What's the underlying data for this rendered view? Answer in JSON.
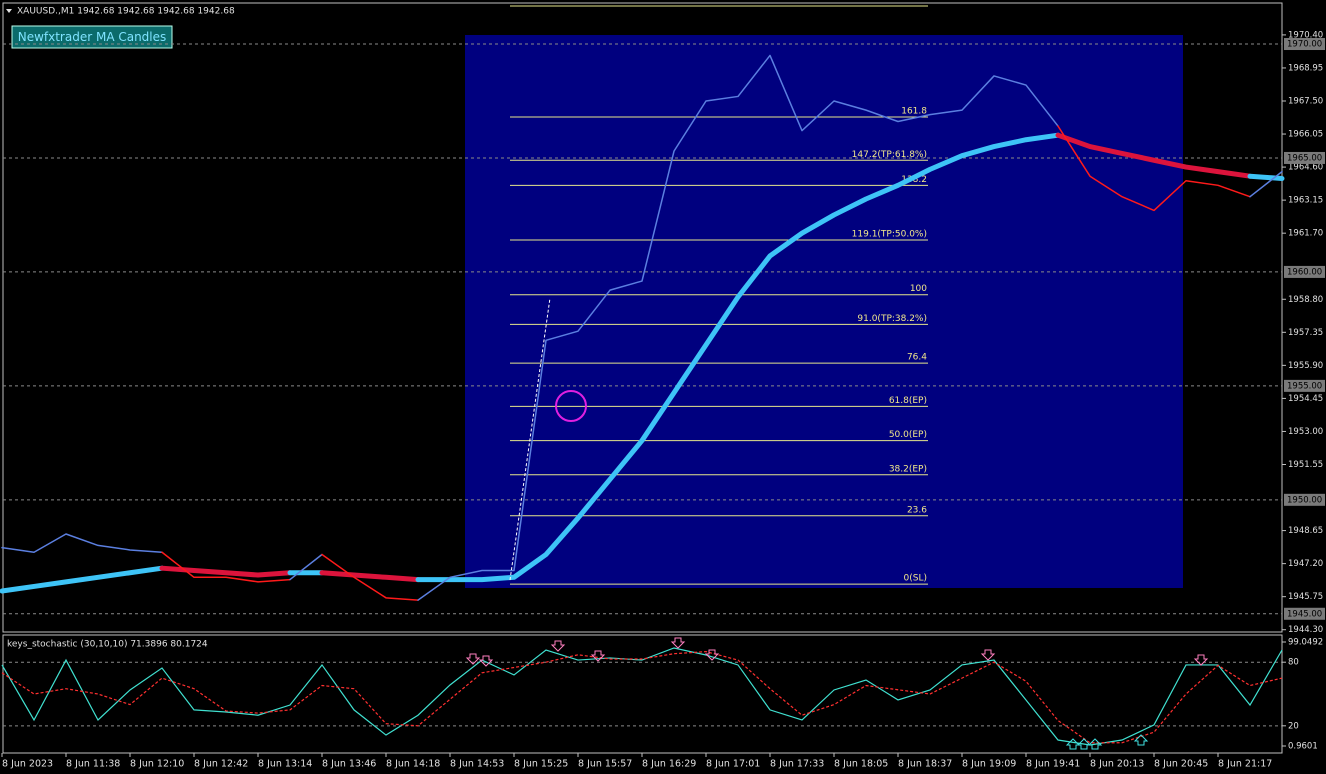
{
  "chart_data": [
    {
      "type": "line",
      "title": "XAUUSD.,M1  1942.68 1942.68 1942.68 1942.68",
      "indicator": "Newfxtrader MA Candles",
      "ylim": [
        1944.2,
        1971.8
      ],
      "yticks": [
        {
          "value": 1970.4,
          "label": "1970.40"
        },
        {
          "value": 1968.95,
          "label": "1968.95"
        },
        {
          "value": 1967.5,
          "label": "1967.50"
        },
        {
          "value": 1966.05,
          "label": "1966.05"
        },
        {
          "value": 1964.6,
          "label": "1964.60"
        },
        {
          "value": 1963.15,
          "label": "1963.15"
        },
        {
          "value": 1961.7,
          "label": "1961.70"
        },
        {
          "value": 1958.8,
          "label": "1958.80"
        },
        {
          "value": 1957.35,
          "label": "1957.35"
        },
        {
          "value": 1955.9,
          "label": "1955.90"
        },
        {
          "value": 1954.45,
          "label": "1954.45"
        },
        {
          "value": 1953,
          "label": "1953.00"
        },
        {
          "value": 1951.55,
          "label": "1951.55"
        },
        {
          "value": 1948.65,
          "label": "1948.65"
        },
        {
          "value": 1947.2,
          "label": "1947.20"
        },
        {
          "value": 1945.75,
          "label": "1945.75"
        },
        {
          "value": 1944.3,
          "label": "1944.30"
        }
      ],
      "price_levels": [
        {
          "value": 1970,
          "label": "1970.00"
        },
        {
          "value": 1965,
          "label": "1965.00"
        },
        {
          "value": 1960,
          "label": "1960.00"
        },
        {
          "value": 1955,
          "label": "1955.00"
        },
        {
          "value": 1950,
          "label": "1950.00"
        },
        {
          "value": 1945,
          "label": "1945.00"
        }
      ],
      "fib_levels": [
        {
          "label": "161.8",
          "value": 1966.8
        },
        {
          "label": "147.2(TP:61.8%)",
          "value": 1964.9
        },
        {
          "label": "138.2",
          "value": 1963.8
        },
        {
          "label": "119.1(TP:50.0%)",
          "value": 1961.4
        },
        {
          "label": "100",
          "value": 1959.0
        },
        {
          "label": "91.0(TP:38.2%)",
          "value": 1957.7
        },
        {
          "label": "76.4",
          "value": 1956.0
        },
        {
          "label": "61.8(EP)",
          "value": 1954.1
        },
        {
          "label": "50.0(EP)",
          "value": 1952.6
        },
        {
          "label": "38.2(EP)",
          "value": 1951.1
        },
        {
          "label": "23.6",
          "value": 1949.3
        },
        {
          "label": "0(SL)",
          "value": 1946.3
        }
      ],
      "series": [
        {
          "color": "#5b7fe0",
          "down_color": "#ff1a1a",
          "width": 1.5,
          "values": [
            1947.9,
            1947.7,
            1948.5,
            1948.0,
            1947.8,
            1947.7,
            1946.6,
            1946.6,
            1946.4,
            1946.5,
            1947.6,
            1946.6,
            1945.7,
            1945.6,
            1946.6,
            1946.9,
            1946.9,
            1957.0,
            1957.4,
            1959.2,
            1959.6,
            1965.3,
            1967.5,
            1967.7,
            1969.5,
            1966.2,
            1967.5,
            1967.1,
            1966.6,
            1966.9,
            1967.1,
            1968.6,
            1968.2,
            1966.4,
            1964.2,
            1963.3,
            1962.7,
            1964.0,
            1963.8,
            1963.3,
            1964.4
          ]
        },
        {
          "color": "#3ec4f7",
          "down_color": "#dc143c",
          "width": 5,
          "values": [
            1946.0,
            1946.2,
            1946.4,
            1946.6,
            1946.8,
            1947.0,
            1946.9,
            1946.8,
            1946.7,
            1946.8,
            1946.8,
            1946.7,
            1946.6,
            1946.5,
            1946.5,
            1946.5,
            1946.6,
            1947.6,
            1949.2,
            1950.9,
            1952.6,
            1954.7,
            1956.8,
            1958.9,
            1960.7,
            1961.7,
            1962.5,
            1963.2,
            1963.8,
            1964.5,
            1965.1,
            1965.5,
            1965.8,
            1966.0,
            1965.5,
            1965.2,
            1964.9,
            1964.6,
            1964.4,
            1964.2,
            1964.1
          ]
        }
      ]
    },
    {
      "type": "line",
      "title": "keys_stochastic (30,10,10) 71.3896 80.1724",
      "ylim": [
        0.9601,
        99.0492
      ],
      "yticks": [
        0.9601,
        20,
        80,
        99.0492
      ],
      "categories": [
        "8 Jun 2023",
        null,
        "8 Jun 11:38",
        null,
        "8 Jun 12:10",
        null,
        "8 Jun 12:42",
        null,
        "8 Jun 13:14",
        null,
        "8 Jun 13:46",
        null,
        "8 Jun 14:18",
        null,
        "8 Jun 14:53",
        null,
        "8 Jun 15:25",
        null,
        "8 Jun 15:57",
        null,
        "8 Jun 16:29",
        null,
        "8 Jun 17:01",
        null,
        "8 Jun 17:33",
        null,
        "8 Jun 18:05",
        null,
        "8 Jun 18:37",
        null,
        "8 Jun 19:09",
        null,
        "8 Jun 19:41",
        null,
        "8 Jun 20:13",
        null,
        "8 Jun 20:45",
        null,
        "8 Jun 21:17",
        null,
        null
      ],
      "series": [
        {
          "color": "#40e0d0",
          "dash": false,
          "values": [
            77.4,
            25.5,
            82,
            25.5,
            53.8,
            74.5,
            35,
            33,
            30,
            39.6,
            77.4,
            35,
            11.3,
            30,
            58.5,
            82,
            68,
            91.5,
            82,
            84,
            82,
            93.4,
            86.8,
            77.4,
            35,
            25.5,
            53.8,
            63.2,
            44.4,
            53.8,
            77.4,
            82,
            44.4,
            6.6,
            1.9,
            6.6,
            20.8,
            77.4,
            77.4,
            39.6,
            91.5
          ]
        },
        {
          "color": "#ff3030",
          "dash": true,
          "values": [
            70,
            50,
            55,
            50,
            40,
            65,
            55,
            34,
            32,
            35,
            58,
            55,
            22,
            20,
            45,
            70,
            75,
            80,
            87,
            83,
            83,
            88,
            90,
            82,
            55,
            30,
            40,
            58,
            54,
            50,
            65,
            80,
            62,
            25,
            4,
            4,
            14,
            50,
            77,
            58,
            65
          ]
        }
      ]
    }
  ]
}
